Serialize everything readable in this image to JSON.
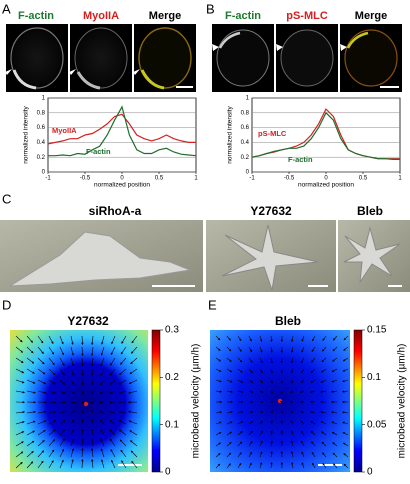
{
  "panels": {
    "a": {
      "label": "A",
      "headers": [
        "F-actin",
        "MyoIIA",
        "Merge"
      ],
      "plot": {
        "ylabel": "normalized intensity",
        "xlabel": "normalized position",
        "xlim": [
          -1,
          1
        ],
        "ylim": [
          0,
          1
        ],
        "xticks": [
          -1,
          -0.5,
          0,
          0.5,
          1
        ],
        "yticks": [
          0,
          0.2,
          0.4,
          0.6,
          0.8,
          1
        ],
        "x": [
          -1,
          -0.9,
          -0.8,
          -0.7,
          -0.6,
          -0.5,
          -0.4,
          -0.3,
          -0.2,
          -0.1,
          0,
          0.1,
          0.2,
          0.3,
          0.4,
          0.5,
          0.6,
          0.7,
          0.8,
          0.9,
          1
        ],
        "series": [
          {
            "name": "MyoIIA",
            "color": "#d42020",
            "values": [
              0.38,
              0.4,
              0.42,
              0.45,
              0.45,
              0.5,
              0.52,
              0.58,
              0.65,
              0.75,
              0.78,
              0.65,
              0.5,
              0.45,
              0.42,
              0.45,
              0.5,
              0.45,
              0.42,
              0.4,
              0.4
            ]
          },
          {
            "name": "F-actin",
            "color": "#1e6e2e",
            "values": [
              0.22,
              0.22,
              0.23,
              0.22,
              0.25,
              0.24,
              0.3,
              0.35,
              0.5,
              0.7,
              0.88,
              0.5,
              0.3,
              0.25,
              0.25,
              0.3,
              0.32,
              0.27,
              0.24,
              0.23,
              0.22
            ]
          }
        ]
      }
    },
    "b": {
      "label": "B",
      "headers": [
        "F-actin",
        "pS-MLC",
        "Merge"
      ],
      "plot": {
        "ylabel": "normalized intensity",
        "xlabel": "normalized position",
        "xlim": [
          -1,
          1
        ],
        "ylim": [
          0,
          1
        ],
        "xticks": [
          -1,
          -0.5,
          0,
          0.5,
          1
        ],
        "yticks": [
          0,
          0.2,
          0.4,
          0.6,
          0.8,
          1
        ],
        "x": [
          -1,
          -0.9,
          -0.8,
          -0.7,
          -0.6,
          -0.5,
          -0.4,
          -0.3,
          -0.2,
          -0.1,
          0,
          0.1,
          0.2,
          0.3,
          0.4,
          0.5,
          0.6,
          0.7,
          0.8,
          0.9,
          1
        ],
        "series": [
          {
            "name": "pS-MLC",
            "color": "#d42020",
            "values": [
              0.2,
              0.22,
              0.25,
              0.27,
              0.3,
              0.32,
              0.35,
              0.4,
              0.5,
              0.65,
              0.85,
              0.75,
              0.5,
              0.3,
              0.25,
              0.22,
              0.2,
              0.18,
              0.18,
              0.18,
              0.18
            ]
          },
          {
            "name": "F-actin",
            "color": "#1e6e2e",
            "values": [
              0.2,
              0.22,
              0.25,
              0.28,
              0.3,
              0.32,
              0.32,
              0.35,
              0.45,
              0.6,
              0.8,
              0.7,
              0.45,
              0.3,
              0.25,
              0.22,
              0.2,
              0.18,
              0.18,
              0.17,
              0.17
            ]
          }
        ]
      }
    },
    "c": {
      "label": "C",
      "titles": [
        "siRhoA-a",
        "Y27632",
        "Bleb"
      ]
    },
    "d": {
      "label": "D",
      "title": "Y27632",
      "colorbar": {
        "label": "microbead velocity (µm/h)",
        "ylim": [
          0,
          0.3
        ],
        "yticks": [
          0,
          0.1,
          0.2,
          0.3
        ]
      }
    },
    "e": {
      "label": "E",
      "title": "Bleb",
      "colorbar": {
        "label": "microbead velocity (µm/h)",
        "ylim": [
          0,
          0.15
        ],
        "yticks": [
          0,
          0.05,
          0.1,
          0.15
        ]
      }
    }
  }
}
